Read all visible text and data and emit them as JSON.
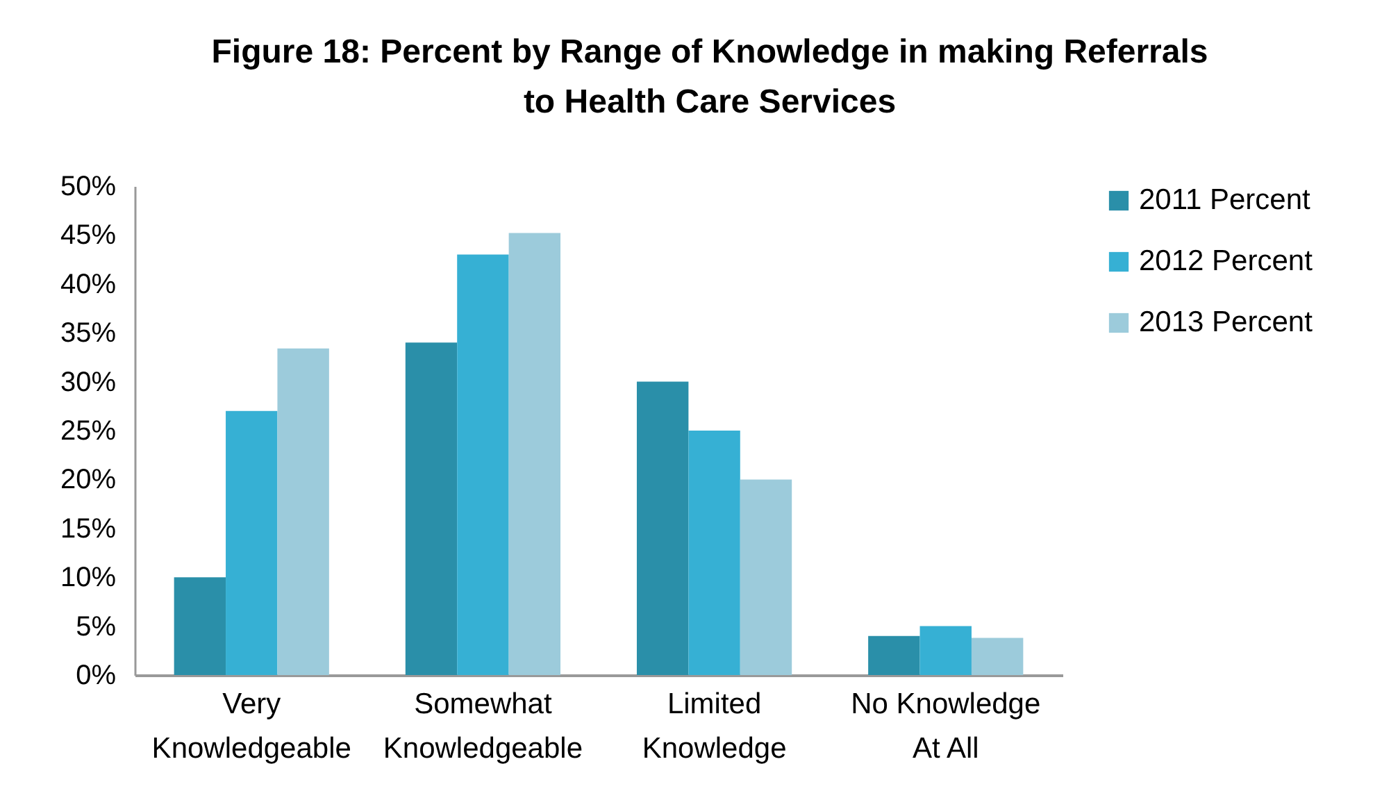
{
  "chart_data": {
    "type": "bar",
    "title": "Figure 18: Percent by Range of Knowledge in making Referrals to Health Care Services",
    "categories": [
      "Very Knowledgeable",
      "Somewhat Knowledgeable",
      "Limited Knowledge",
      "No Knowledge At All"
    ],
    "series": [
      {
        "name": "2011 Percent",
        "color": "#2a8fa9",
        "values": [
          10,
          34,
          30,
          4
        ]
      },
      {
        "name": "2012 Percent",
        "color": "#36b0d4",
        "values": [
          27,
          43,
          25,
          5
        ]
      },
      {
        "name": "2013  Percent",
        "color": "#9ccbdb",
        "values": [
          33.4,
          45.2,
          20,
          3.8
        ]
      }
    ],
    "ylim": [
      0,
      50
    ],
    "yticks": [
      {
        "value": 0,
        "label": "0%"
      },
      {
        "value": 5,
        "label": "5%"
      },
      {
        "value": 10,
        "label": "10%"
      },
      {
        "value": 15,
        "label": "15%"
      },
      {
        "value": 20,
        "label": "20%"
      },
      {
        "value": 25,
        "label": "25%"
      },
      {
        "value": 30,
        "label": "30%"
      },
      {
        "value": 35,
        "label": "35%"
      },
      {
        "value": 40,
        "label": "40%"
      },
      {
        "value": 45,
        "label": "45%"
      },
      {
        "value": 50,
        "label": "50%"
      }
    ],
    "grid": false,
    "legend": "right"
  }
}
